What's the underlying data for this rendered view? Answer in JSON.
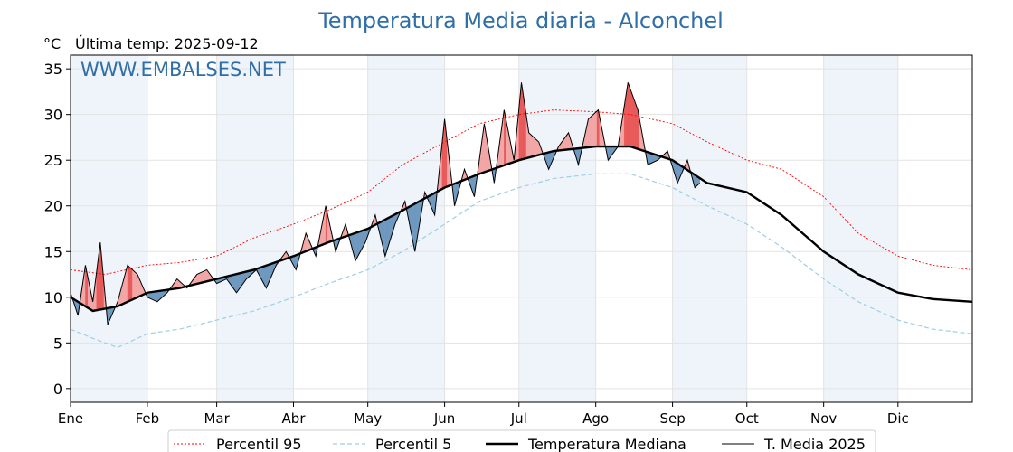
{
  "chart_data": {
    "type": "line",
    "title": "Temperatura Media diaria - Alconchel",
    "unit_label": "°C",
    "last_temp_label": "Última temp: 2025-09-12",
    "watermark": "WWW.EMBALSES.NET",
    "ylim": [
      -1.5,
      36.5
    ],
    "yticks": [
      0,
      5,
      10,
      15,
      20,
      25,
      30,
      35
    ],
    "months": [
      "Ene",
      "Feb",
      "Mar",
      "Abr",
      "May",
      "Jun",
      "Jul",
      "Ago",
      "Sep",
      "Oct",
      "Nov",
      "Dic"
    ],
    "grid": true,
    "legend_position": "bottom",
    "legend": [
      "Percentil 95",
      "Percentil 5",
      "Temperatura Mediana",
      "T. Media 2025"
    ],
    "colors": {
      "title": "#2f6fa8",
      "watermark": "#2f6fa8",
      "p95": "#ff0000",
      "p5": "#9ecfe0",
      "median": "#000000",
      "current": "#000000",
      "above_fill": "#f2a6a6",
      "above_strong": "#e85a5a",
      "below_fill": "#6f98bf",
      "band": "#eef4fa"
    },
    "series": [
      {
        "name": "Percentil 95",
        "day_of_year": [
          1,
          15,
          32,
          45,
          60,
          75,
          91,
          105,
          121,
          135,
          152,
          166,
          182,
          196,
          213,
          227,
          244,
          258,
          274,
          288,
          305,
          319,
          335,
          349,
          365
        ],
        "values": [
          13.0,
          12.5,
          13.5,
          13.8,
          14.5,
          16.5,
          18.0,
          19.5,
          21.5,
          24.5,
          27.0,
          29.0,
          30.0,
          30.5,
          30.3,
          30.0,
          29.0,
          27.0,
          25.0,
          24.0,
          21.0,
          17.0,
          14.5,
          13.5,
          13.0
        ]
      },
      {
        "name": "Percentil 5",
        "day_of_year": [
          1,
          10,
          20,
          32,
          45,
          60,
          75,
          91,
          105,
          121,
          135,
          152,
          166,
          182,
          196,
          213,
          227,
          244,
          258,
          274,
          288,
          305,
          319,
          335,
          349,
          365
        ],
        "values": [
          6.5,
          5.5,
          4.5,
          6.0,
          6.5,
          7.5,
          8.5,
          10.0,
          11.5,
          13.0,
          15.0,
          18.0,
          20.5,
          22.0,
          23.0,
          23.5,
          23.5,
          22.0,
          20.0,
          18.0,
          15.5,
          12.0,
          9.5,
          7.5,
          6.5,
          6.0
        ]
      },
      {
        "name": "Temperatura Mediana",
        "day_of_year": [
          1,
          10,
          20,
          32,
          45,
          60,
          75,
          91,
          105,
          121,
          135,
          152,
          166,
          182,
          196,
          213,
          227,
          244,
          258,
          274,
          288,
          305,
          319,
          335,
          349,
          365
        ],
        "values": [
          10.0,
          8.5,
          9.0,
          10.5,
          11.0,
          12.0,
          13.0,
          14.5,
          16.0,
          17.5,
          19.5,
          22.0,
          23.5,
          25.0,
          26.0,
          26.5,
          26.5,
          25.0,
          22.5,
          21.5,
          19.0,
          15.0,
          12.5,
          10.5,
          9.8,
          9.5
        ]
      },
      {
        "name": "T. Media 2025",
        "day_of_year": [
          1,
          4,
          7,
          10,
          13,
          16,
          20,
          24,
          28,
          32,
          36,
          40,
          44,
          48,
          52,
          56,
          60,
          64,
          68,
          72,
          76,
          80,
          84,
          88,
          92,
          96,
          100,
          104,
          108,
          112,
          116,
          120,
          124,
          128,
          132,
          136,
          140,
          144,
          148,
          152,
          156,
          160,
          164,
          168,
          172,
          176,
          180,
          183,
          186,
          190,
          194,
          198,
          202,
          206,
          210,
          214,
          218,
          222,
          226,
          230,
          234,
          238,
          242,
          246,
          250,
          253,
          255
        ],
        "values": [
          10.5,
          8.0,
          13.5,
          9.5,
          16.0,
          7.0,
          9.5,
          13.5,
          12.5,
          10.0,
          9.5,
          10.5,
          12.0,
          11.0,
          12.5,
          13.0,
          11.5,
          12.0,
          10.5,
          12.0,
          13.0,
          11.0,
          13.5,
          15.0,
          13.0,
          17.0,
          14.5,
          20.0,
          15.0,
          18.0,
          14.0,
          16.0,
          19.0,
          14.5,
          18.0,
          20.5,
          15.0,
          21.5,
          19.0,
          29.5,
          20.0,
          24.0,
          21.0,
          29.0,
          22.5,
          30.5,
          25.0,
          33.5,
          28.0,
          27.0,
          24.0,
          26.5,
          28.0,
          24.5,
          29.5,
          30.5,
          25.0,
          26.5,
          33.5,
          30.5,
          24.5,
          25.0,
          26.0,
          22.5,
          25.0,
          22.0,
          22.5
        ]
      }
    ]
  }
}
